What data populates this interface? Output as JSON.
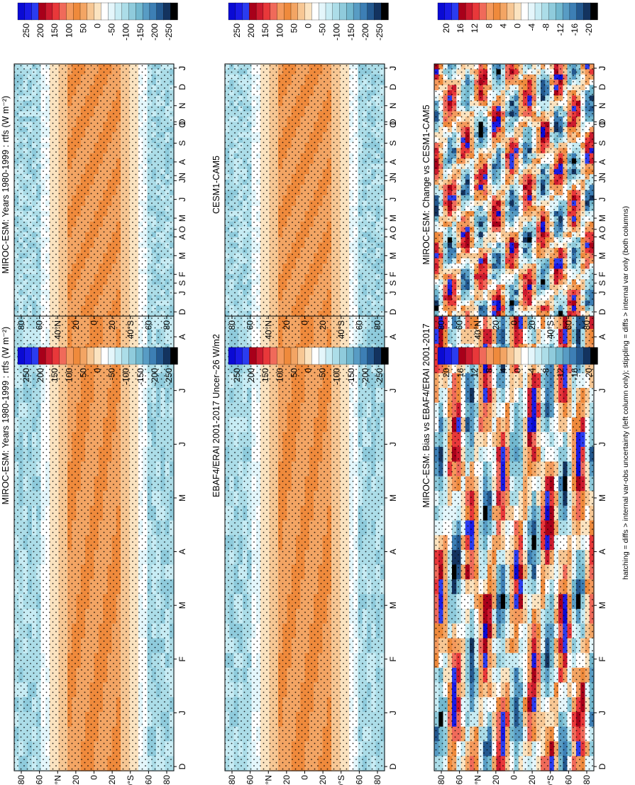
{
  "figure": {
    "footnote": "hatching = diffs > internal var-obs uncertainty (left column only); stippling = diffs > internal var only (both columns)"
  },
  "chart_data": [
    {
      "type": "heatmap",
      "panel": "top-left",
      "title": "MIROC-ESM: Years 1980-1999 : rtfs (W m⁻²)",
      "x_ticks": [
        "D",
        "J",
        "F",
        "M",
        "A",
        "M",
        "J",
        "J",
        "A",
        "S",
        "O",
        "N",
        "D",
        "J"
      ],
      "y_ticks": [
        "80",
        "60",
        "40°N",
        "20",
        "0",
        "20",
        "40°S",
        "60",
        "80"
      ],
      "colorbar_labels": [
        "250",
        "200",
        "150",
        "100",
        "50",
        "0",
        "-50",
        "-100",
        "-150",
        "-200",
        "-250"
      ],
      "field_kind": "mean"
    },
    {
      "type": "heatmap",
      "panel": "top-right",
      "title": "MIROC-ESM: Years 1980-1999 : rtfs (W m⁻²)",
      "x_ticks": [
        "D",
        "J",
        "F",
        "M",
        "A",
        "M",
        "J",
        "J",
        "A",
        "S",
        "O",
        "N",
        "D",
        "J"
      ],
      "y_ticks": [
        "80",
        "60",
        "40°N",
        "20",
        "0",
        "20",
        "40°S",
        "60",
        "80"
      ],
      "colorbar_labels": [
        "250",
        "200",
        "150",
        "100",
        "50",
        "0",
        "-50",
        "-100",
        "-150",
        "-200",
        "-250"
      ],
      "field_kind": "mean"
    },
    {
      "type": "heatmap",
      "panel": "middle-left",
      "title": "EBAF4/ERAI 2001-2017 Uncer~26 W/m2",
      "x_ticks": [
        "D",
        "J",
        "F",
        "M",
        "A",
        "M",
        "J",
        "J",
        "A",
        "S",
        "O",
        "N",
        "D",
        "J"
      ],
      "y_ticks": [
        "80",
        "60",
        "40°N",
        "20",
        "0",
        "20",
        "40°S",
        "60",
        "80"
      ],
      "colorbar_labels": [
        "250",
        "200",
        "150",
        "100",
        "50",
        "0",
        "-50",
        "-100",
        "-150",
        "-200",
        "-250"
      ],
      "field_kind": "mean"
    },
    {
      "type": "heatmap",
      "panel": "middle-right",
      "title": "CESM1-CAM5",
      "x_ticks": [
        "D",
        "J",
        "F",
        "M",
        "A",
        "M",
        "J",
        "J",
        "A",
        "S",
        "O",
        "N",
        "D",
        "J"
      ],
      "y_ticks": [
        "80",
        "60",
        "40°N",
        "20",
        "0",
        "20",
        "40°S",
        "60",
        "80"
      ],
      "colorbar_labels": [
        "250",
        "200",
        "150",
        "100",
        "50",
        "0",
        "-50",
        "-100",
        "-150",
        "-200",
        "-250"
      ],
      "field_kind": "mean"
    },
    {
      "type": "heatmap",
      "panel": "bottom-left",
      "title": "MIROC-ESM: Bias vs EBAF4/ERAI 2001-2017",
      "x_ticks": [
        "D",
        "J",
        "F",
        "M",
        "A",
        "M",
        "J",
        "J",
        "A",
        "S",
        "O",
        "N",
        "D",
        "J"
      ],
      "y_ticks": [
        "80",
        "60",
        "40°N",
        "20",
        "0",
        "20",
        "40°S",
        "60",
        "80"
      ],
      "colorbar_labels": [
        "20",
        "16",
        "12",
        "8",
        "4",
        "0",
        "-4",
        "-8",
        "-12",
        "-16",
        "-20"
      ],
      "field_kind": "diff"
    },
    {
      "type": "heatmap",
      "panel": "bottom-right",
      "title": "MIROC-ESM: Change vs CESM1-CAM5",
      "x_ticks": [
        "D",
        "J",
        "F",
        "M",
        "A",
        "M",
        "J",
        "J",
        "A",
        "S",
        "O",
        "N",
        "D",
        "J"
      ],
      "y_ticks": [
        "80",
        "60",
        "40°N",
        "20",
        "0",
        "20",
        "40°S",
        "60",
        "80"
      ],
      "colorbar_labels": [
        "20",
        "16",
        "12",
        "8",
        "4",
        "0",
        "-4",
        "-8",
        "-12",
        "-16",
        "-20"
      ],
      "field_kind": "diff"
    }
  ],
  "colors": {
    "palette": [
      "#0a0ad4",
      "#1a1ae6",
      "#2a3cf0",
      "#a8001a",
      "#cc1a2e",
      "#e8383a",
      "#f06a5a",
      "#f4995c",
      "#ef8a3c",
      "#f3a564",
      "#f7c794",
      "#fbe3c0",
      "#ffffff",
      "#e4f6fb",
      "#c8ecf4",
      "#acdde8",
      "#8fcbdc",
      "#72b8cf",
      "#589cc4",
      "#3d7fb5",
      "#23588f",
      "#13335f",
      "#000000"
    ],
    "orange_mid": "#f3a564",
    "orange_deep": "#ea7a1e"
  }
}
